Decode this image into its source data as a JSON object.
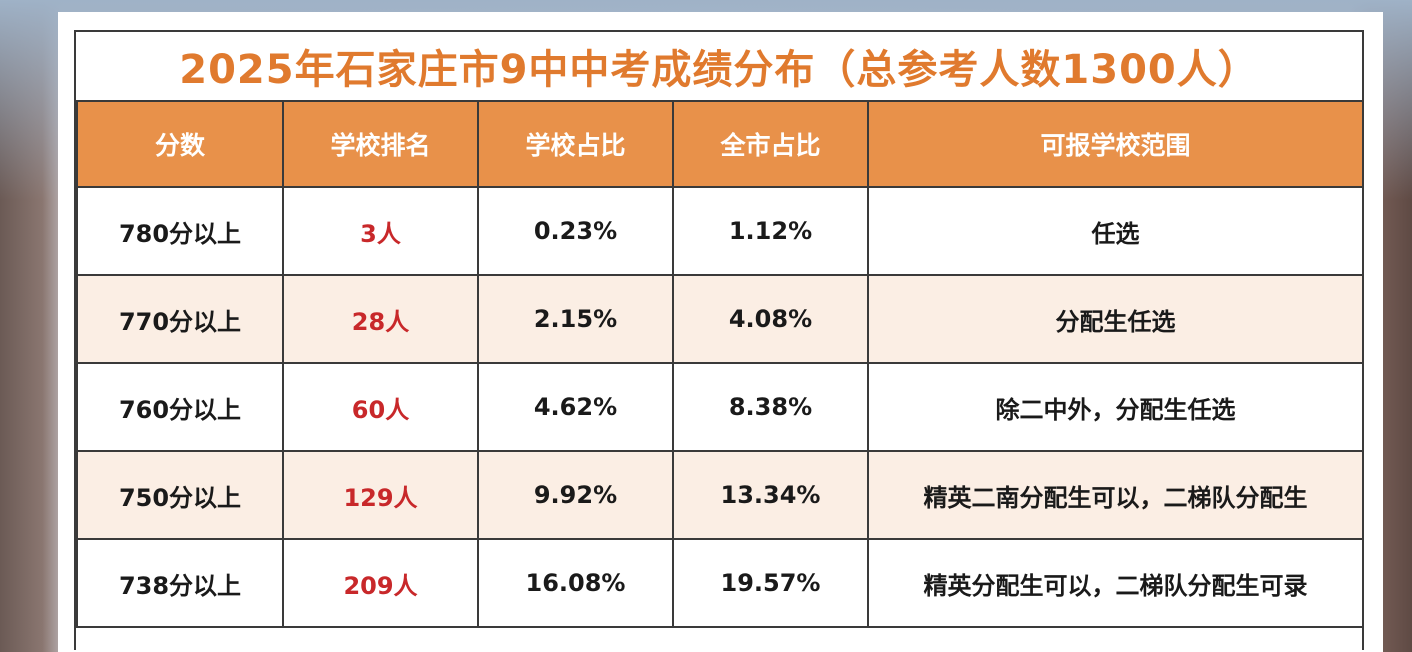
{
  "title": "2025年石家庄市9中中考成绩分布（总参考人数1300人）",
  "accent_colors": {
    "header": "#e8914a",
    "title": "#e07a2e",
    "rank_text": "#c8282a",
    "alt_row": "#fbeee4"
  },
  "table": {
    "headers": [
      "分数",
      "学校排名",
      "学校占比",
      "全市占比",
      "可报学校范围"
    ],
    "rows": [
      {
        "score": "780分以上",
        "rank": "3人",
        "school_pct": "0.23%",
        "city_pct": "1.12%",
        "range": "任选"
      },
      {
        "score": "770分以上",
        "rank": "28人",
        "school_pct": "2.15%",
        "city_pct": "4.08%",
        "range": "分配生任选"
      },
      {
        "score": "760分以上",
        "rank": "60人",
        "school_pct": "4.62%",
        "city_pct": "8.38%",
        "range": "除二中外，分配生任选"
      },
      {
        "score": "750分以上",
        "rank": "129人",
        "school_pct": "9.92%",
        "city_pct": "13.34%",
        "range": "精英二南分配生可以，二梯队分配生"
      },
      {
        "score": "738分以上",
        "rank": "209人",
        "school_pct": "16.08%",
        "city_pct": "19.57%",
        "range": "精英分配生可以，二梯队分配生可录"
      }
    ]
  }
}
